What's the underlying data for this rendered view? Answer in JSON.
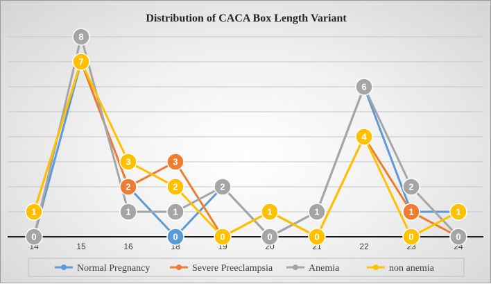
{
  "chart_data": {
    "type": "line",
    "title": "Distribution of CACA Box Length Variant",
    "xlabel": "",
    "ylabel": "",
    "categories": [
      "14",
      "15",
      "16",
      "18",
      "19",
      "20",
      "21",
      "22",
      "23",
      "24"
    ],
    "ylim": [
      0,
      8
    ],
    "grid": true,
    "legend_position": "bottom",
    "series": [
      {
        "name": "Normal Pregnancy",
        "color": "#5b9bd5",
        "values": [
          0,
          7,
          2,
          0,
          2,
          0,
          1,
          6,
          1,
          1
        ]
      },
      {
        "name": "Severe Preeclampsia",
        "color": "#ed7d31",
        "values": [
          1,
          7,
          2,
          3,
          0,
          1,
          0,
          4,
          1,
          0
        ]
      },
      {
        "name": "Anemia",
        "color": "#a5a5a5",
        "values": [
          0,
          8,
          1,
          1,
          2,
          0,
          1,
          6,
          2,
          0
        ]
      },
      {
        "name": "non anemia",
        "color": "#ffc000",
        "values": [
          1,
          7,
          3,
          2,
          0,
          1,
          0,
          4,
          0,
          1
        ]
      }
    ],
    "visible_labels": [
      {
        "series": 2,
        "points": [
          0,
          1,
          2,
          3,
          4,
          5,
          6,
          7,
          8,
          9
        ]
      },
      {
        "series": 1,
        "points": [
          2,
          3,
          8
        ]
      },
      {
        "series": 0,
        "points": [
          3
        ]
      },
      {
        "series": 3,
        "points": [
          0,
          1,
          2,
          3,
          4,
          5,
          6,
          7,
          8,
          9
        ]
      }
    ]
  }
}
